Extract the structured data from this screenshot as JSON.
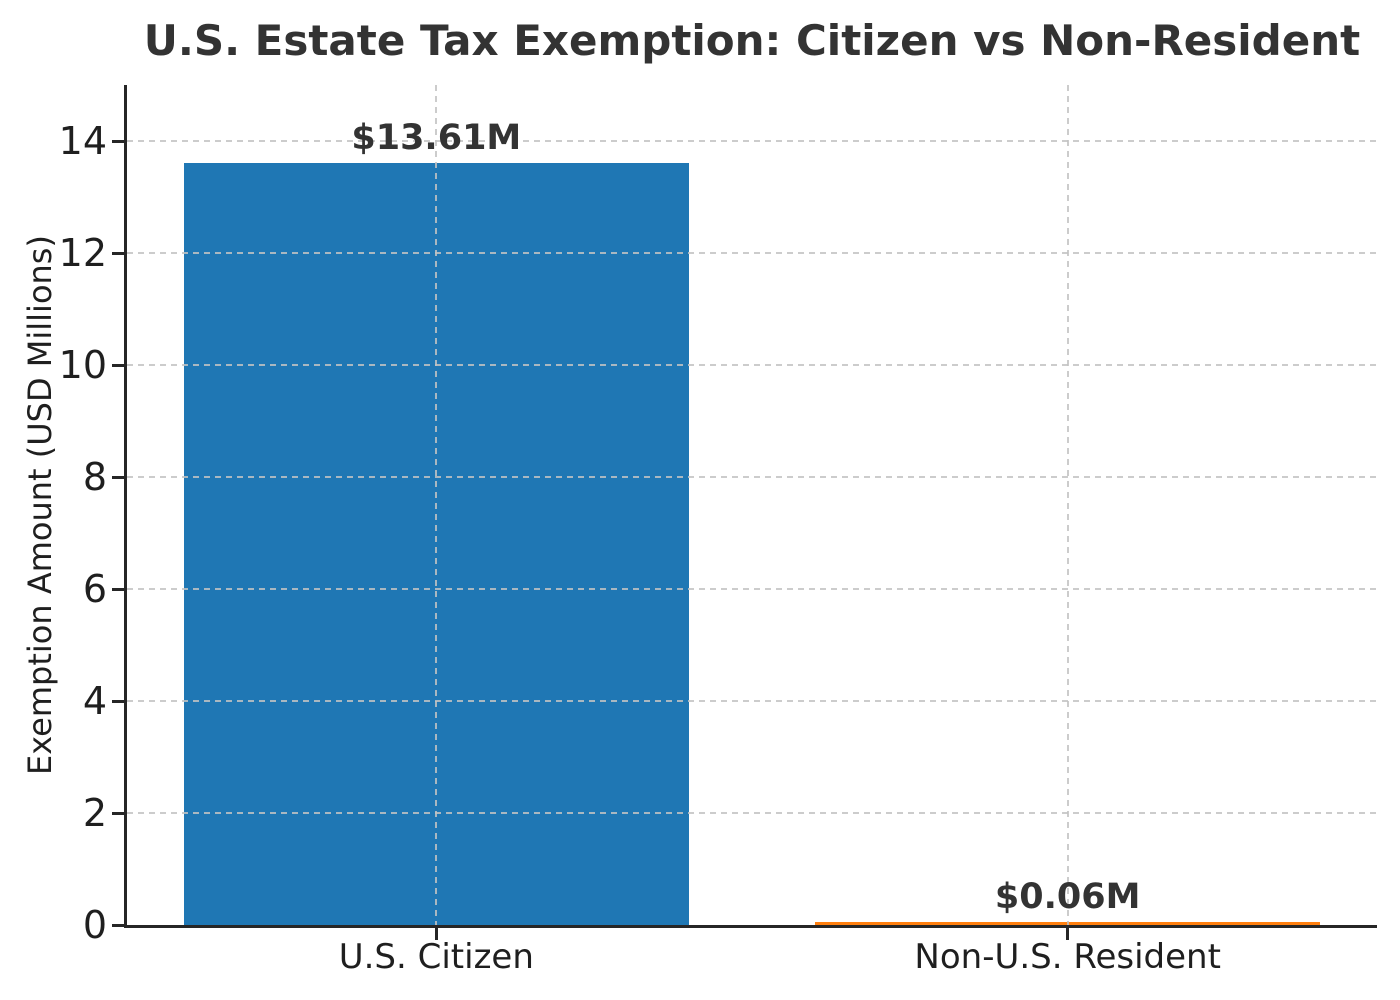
{
  "chart_data": {
    "type": "bar",
    "title": "U.S. Estate Tax Exemption: Citizen vs Non-Resident",
    "categories": [
      "U.S. Citizen",
      "Non-U.S. Resident"
    ],
    "values": [
      13.61,
      0.06
    ],
    "bar_labels": [
      "$13.61M",
      "$0.06M"
    ],
    "bar_colors": [
      "#1f77b4",
      "#ff7f0e"
    ],
    "xlabel": "",
    "ylabel": "Exemption Amount (USD Millions)",
    "ylim": [
      0,
      15
    ],
    "yticks": [
      0,
      2,
      4,
      6,
      8,
      10,
      12,
      14
    ],
    "grid": {
      "visible": true,
      "style": "dashed",
      "axes": "both",
      "above_bars": true
    },
    "legend_position": "none"
  },
  "colors": {
    "citizen_bar": "#1f77b4",
    "non_resident_bar": "#ff7f0e",
    "gridline": "#c3c3c3",
    "axis_spine": "#262626",
    "title_text": "#333333",
    "tick_text": "#1f1f1f",
    "background": "#ffffff"
  }
}
